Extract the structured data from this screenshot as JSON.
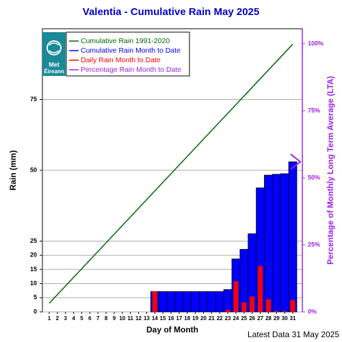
{
  "chart_data": {
    "type": "bar",
    "title": "Valentia - Cumulative Rain May   2025",
    "xlabel": "Day of Month",
    "ylabel": "Rain (mm)",
    "y2label": "Percentage  of Monthly Long Term Average (LTA)",
    "footer": "Latest Data 31 May 2025",
    "logo_text": [
      "Met",
      "Éireann"
    ],
    "categories": [
      1,
      2,
      3,
      4,
      5,
      6,
      7,
      8,
      9,
      10,
      11,
      12,
      13,
      14,
      15,
      16,
      17,
      18,
      19,
      20,
      21,
      22,
      23,
      24,
      25,
      26,
      27,
      28,
      29,
      30,
      31
    ],
    "series": [
      {
        "name": "Cumulative Rain 1991-2020",
        "color": "#006400",
        "style": "line",
        "values": [
          3.05,
          6.1,
          9.15,
          12.2,
          15.25,
          18.3,
          21.35,
          24.4,
          27.45,
          30.5,
          33.55,
          36.6,
          39.65,
          42.7,
          45.75,
          48.8,
          51.85,
          54.9,
          57.95,
          61.0,
          64.05,
          67.1,
          70.15,
          73.2,
          76.25,
          79.3,
          82.35,
          85.4,
          88.45,
          91.5,
          94.55
        ]
      },
      {
        "name": "Cumulative Rain Month to Date",
        "color": "#0000ff",
        "style": "bar",
        "values": [
          0,
          0,
          0,
          0,
          0,
          0,
          0,
          0,
          0,
          0,
          0,
          0,
          0,
          7.2,
          7.2,
          7.2,
          7.2,
          7.2,
          7.2,
          7.2,
          7.2,
          7.2,
          7.9,
          18.7,
          22.1,
          27.6,
          43.8,
          48.3,
          48.6,
          48.8,
          53.0
        ]
      },
      {
        "name": "Daily Rain Month to Date",
        "color": "#ff0000",
        "style": "narrow-bar",
        "values": [
          0,
          0,
          0,
          0,
          0,
          0,
          0,
          0,
          0,
          0,
          0,
          0,
          0,
          7.2,
          0,
          0,
          0,
          0,
          0,
          0,
          0,
          0,
          0.7,
          10.8,
          3.4,
          5.5,
          16.2,
          4.5,
          0.3,
          0.2,
          4.2
        ]
      },
      {
        "name": "Percentage Rain Month to Date",
        "color": "#a020f0",
        "style": "marker",
        "axis": "y2",
        "values": [
          null,
          null,
          null,
          null,
          null,
          null,
          null,
          null,
          null,
          null,
          null,
          null,
          null,
          null,
          null,
          null,
          null,
          null,
          null,
          null,
          null,
          null,
          null,
          null,
          null,
          null,
          null,
          null,
          null,
          null,
          56
        ]
      }
    ],
    "ylim": [
      0,
      100
    ],
    "yticks": [
      0,
      5,
      10,
      15,
      20,
      25,
      50,
      75
    ],
    "y2lim": [
      0,
      105.6
    ],
    "y2ticks": [
      {
        "value": 0,
        "label": "0%"
      },
      {
        "value": 25,
        "label": "25%"
      },
      {
        "value": 50,
        "label": "50%"
      },
      {
        "value": 75,
        "label": "75%"
      },
      {
        "value": 100,
        "label": "100%"
      }
    ],
    "y2color": "#a020f0",
    "grid": true,
    "legend": "upper left"
  }
}
